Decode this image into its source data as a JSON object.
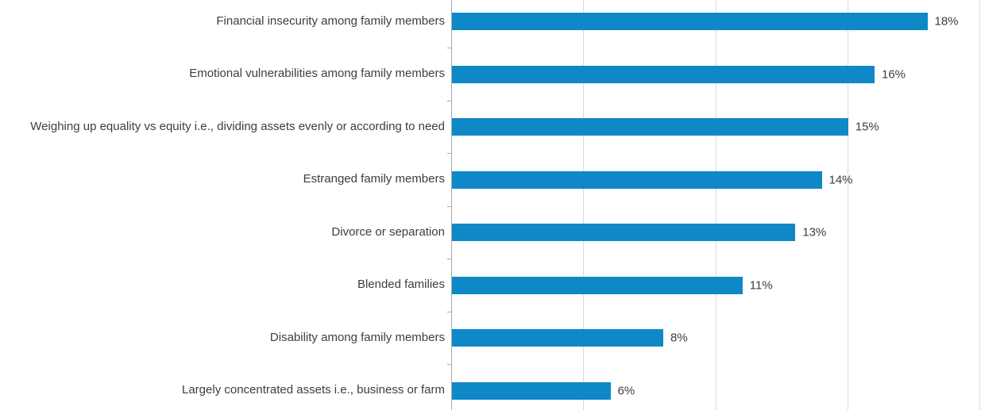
{
  "chart_data": {
    "type": "bar",
    "orientation": "horizontal",
    "title": "",
    "xlabel": "",
    "ylabel": "",
    "categories": [
      "Financial insecurity among family members",
      "Emotional vulnerabilities among family members",
      "Weighing up equality vs equity i.e., dividing assets evenly or according to need",
      "Estranged family members",
      "Divorce or separation",
      "Blended families",
      "Disability among family members",
      "Largely concentrated assets i.e., business or farm"
    ],
    "values": [
      18,
      16,
      15,
      14,
      13,
      11,
      8,
      6
    ],
    "value_labels": [
      "18%",
      "16%",
      "15%",
      "14%",
      "13%",
      "11%",
      "8%",
      "6%"
    ],
    "xlim": [
      0,
      20
    ],
    "gridline_step": 5,
    "grid": true,
    "legend": "none",
    "colors": {
      "bar": "#0f88c8",
      "gridline": "#d9d9d9",
      "axis": "#a9a9a9",
      "text": "#3d3d3d"
    }
  }
}
